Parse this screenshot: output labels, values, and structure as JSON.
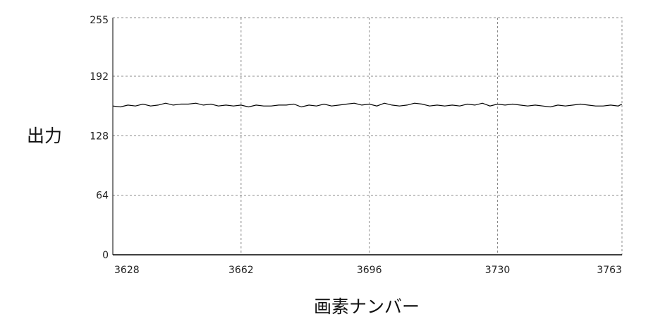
{
  "chart_data": {
    "type": "line",
    "title": "",
    "xlabel": "画素ナンバー",
    "ylabel": "出力",
    "xlim": [
      3628,
      3763
    ],
    "ylim": [
      0,
      255
    ],
    "x_ticks": [
      "3628",
      "3662",
      "3696",
      "3730",
      "3763"
    ],
    "y_ticks": [
      "0",
      "64",
      "128",
      "192",
      "255"
    ],
    "grid": true,
    "grid_style": "dashed",
    "line_color": "#000000",
    "grid_color": "#8c8c8c",
    "series": [
      {
        "x": [
          3628,
          3630,
          3632,
          3634,
          3636,
          3638,
          3640,
          3642,
          3644,
          3646,
          3648,
          3650,
          3652,
          3654,
          3656,
          3658,
          3660,
          3662,
          3664,
          3666,
          3668,
          3670,
          3672,
          3674,
          3676,
          3678,
          3680,
          3682,
          3684,
          3686,
          3688,
          3690,
          3692,
          3694,
          3696,
          3698,
          3700,
          3702,
          3704,
          3706,
          3708,
          3710,
          3712,
          3714,
          3716,
          3718,
          3720,
          3722,
          3724,
          3726,
          3728,
          3730,
          3732,
          3734,
          3736,
          3738,
          3740,
          3742,
          3744,
          3746,
          3748,
          3750,
          3752,
          3754,
          3756,
          3758,
          3760,
          3762,
          3763
        ],
        "values": [
          160,
          159,
          161,
          160,
          162,
          160,
          161,
          163,
          161,
          162,
          162,
          163,
          161,
          162,
          160,
          161,
          160,
          161,
          159,
          161,
          160,
          160,
          161,
          161,
          162,
          159,
          161,
          160,
          162,
          160,
          161,
          162,
          163,
          161,
          162,
          160,
          163,
          161,
          160,
          161,
          163,
          162,
          160,
          161,
          160,
          161,
          160,
          162,
          161,
          163,
          160,
          162,
          161,
          162,
          161,
          160,
          161,
          160,
          159,
          161,
          160,
          161,
          162,
          161,
          160,
          160,
          161,
          160,
          162
        ]
      }
    ]
  }
}
